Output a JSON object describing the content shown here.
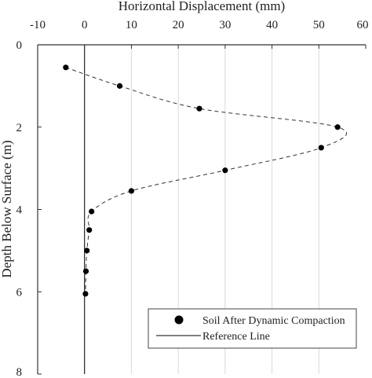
{
  "chart_data": {
    "type": "scatter",
    "title": "",
    "xlabel": "Horizontal Displacement (mm)",
    "ylabel": "Depth Below Surface (m)",
    "xlim": [
      -10,
      60
    ],
    "ylim": [
      0,
      8
    ],
    "y_inverted": true,
    "x_axis_position": "top",
    "xticks": [
      -10,
      0,
      10,
      20,
      30,
      40,
      50,
      60
    ],
    "yticks": [
      0,
      2,
      4,
      6,
      8
    ],
    "grid": "vertical",
    "legend_position": "bottom-right",
    "series": [
      {
        "name": "Soil After Dynamic Compaction",
        "marker": "filled-circle",
        "line": "dashed-smooth",
        "color": "#000000",
        "points": [
          {
            "x": -4,
            "y": 0.55
          },
          {
            "x": 7.5,
            "y": 1.0
          },
          {
            "x": 24.5,
            "y": 1.55
          },
          {
            "x": 54,
            "y": 2.0
          },
          {
            "x": 50.5,
            "y": 2.5
          },
          {
            "x": 30,
            "y": 3.05
          },
          {
            "x": 10,
            "y": 3.55
          },
          {
            "x": 1.5,
            "y": 4.05
          },
          {
            "x": 1.0,
            "y": 4.5
          },
          {
            "x": 0.5,
            "y": 5.0
          },
          {
            "x": 0.3,
            "y": 5.5
          },
          {
            "x": 0.2,
            "y": 6.05
          }
        ]
      },
      {
        "name": "Reference Line",
        "line": "solid",
        "color": "#000000",
        "x": 0
      }
    ]
  }
}
